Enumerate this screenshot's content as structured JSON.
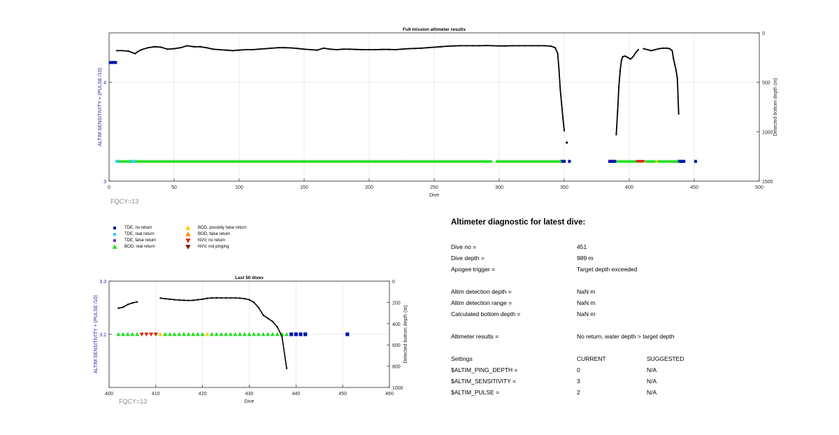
{
  "colors": {
    "tde_no_return": "#0014a8",
    "tde_real_return": "#33ccff",
    "tde_false_return": "#7b2fbe",
    "bod_real_return": "#22dd22",
    "bod_possibly_false": "#ffcc00",
    "bod_false_return": "#ff8800",
    "nvv_no_return": "#dd2200",
    "nvv_not_pinging": "#7a0a0a",
    "depth_line": "#000000",
    "left_axis": "#2222aa"
  },
  "top": {
    "fqcy": "FQCY=13"
  },
  "bottom": {
    "fqcy": "FQCY=13"
  },
  "legend": [
    {
      "key": "tde_no_return",
      "label": "TDE, no return",
      "marker": "square"
    },
    {
      "key": "tde_real_return",
      "label": "TDE, real return",
      "marker": "square"
    },
    {
      "key": "tde_false_return",
      "label": "TDE, false return",
      "marker": "square"
    },
    {
      "key": "bod_real_return",
      "label": "BOD, real return",
      "marker": "triangle-up"
    },
    {
      "key": "bod_possibly_false",
      "label": "BOD, possibly false return",
      "marker": "triangle-up"
    },
    {
      "key": "bod_false_return",
      "label": "BOD, false return",
      "marker": "triangle-up"
    },
    {
      "key": "nvv_no_return",
      "label": "NVV, no return",
      "marker": "triangle-down"
    },
    {
      "key": "nvv_not_pinging",
      "label": "NVV, not pinging",
      "marker": "triangle-down"
    }
  ],
  "diagnostic": {
    "title": "Altimeter diagnostic for latest dive:",
    "rows": [
      {
        "label": "Dive no =",
        "value": "451"
      },
      {
        "label": "Dive depth =",
        "value": "989 m"
      },
      {
        "label": "Apogee trigger =",
        "value": "Target depth exceeded"
      },
      {
        "label": "Altim detection depth =",
        "value": "NaN m"
      },
      {
        "label": "Altim detection range =",
        "value": "NaN m"
      },
      {
        "label": "Calculated bottom depth =",
        "value": "NaN m"
      },
      {
        "label": "Altimeter results =",
        "value": "No return, water depth > target depth"
      }
    ],
    "settings": {
      "header": {
        "label": "Settings",
        "current": "CURRENT",
        "suggested": "SUGGESTED"
      },
      "rows": [
        {
          "label": "$ALTIM_PING_DEPTH =",
          "current": "0",
          "suggested": "N/A"
        },
        {
          "label": "$ALTIM_SENSITIVITY =",
          "current": "3",
          "suggested": "N/A"
        },
        {
          "label": "$ALTIM_PULSE =",
          "current": "2",
          "suggested": "N/A"
        }
      ]
    }
  },
  "chart_data": [
    {
      "type": "scatter",
      "title": "Full mission altimeter results",
      "xlabel": "Dive",
      "ylabel": "ALTIM SENSITIVITY + (PULSE /10)",
      "y2label": "Detected bottom depth (m)",
      "xlim": [
        0,
        500
      ],
      "ylim": [
        3,
        4.5
      ],
      "y2lim": [
        1500,
        0
      ],
      "xticks": [
        0,
        50,
        100,
        150,
        200,
        250,
        300,
        350,
        400,
        450,
        500
      ],
      "yticks": [
        3,
        4
      ],
      "y2ticks": [
        0,
        500,
        1000,
        1500
      ],
      "grid": true,
      "series": [
        {
          "key": "tde_no_return",
          "points": [
            [
              1,
              4.2
            ],
            [
              2,
              4.2
            ],
            [
              3,
              4.2
            ],
            [
              4,
              4.2
            ],
            [
              5,
              4.2
            ],
            [
              348,
              3.2
            ],
            [
              349,
              3.2
            ],
            [
              350,
              3.2
            ],
            [
              354,
              3.2
            ],
            [
              385,
              3.2
            ],
            [
              386,
              3.2
            ],
            [
              387,
              3.2
            ],
            [
              388,
              3.2
            ],
            [
              389,
              3.2
            ],
            [
              438,
              3.2
            ],
            [
              439,
              3.2
            ],
            [
              440,
              3.2
            ],
            [
              441,
              3.2
            ],
            [
              442,
              3.2
            ],
            [
              451,
              3.2
            ]
          ]
        },
        {
          "key": "tde_real_return",
          "points": [
            [
              6,
              3.2
            ],
            [
              7,
              3.2
            ],
            [
              17,
              3.2
            ],
            [
              18,
              3.2
            ],
            [
              19,
              3.2
            ],
            [
              20,
              3.2
            ]
          ]
        },
        {
          "key": "bod_real_return",
          "ranges": [
            [
              8,
              16,
              3.2
            ],
            [
              21,
              294,
              3.2
            ],
            [
              298,
              347,
              3.2
            ],
            [
              391,
              405,
              3.2
            ],
            [
              413,
              437,
              3.2
            ]
          ]
        },
        {
          "key": "bod_possibly_false",
          "points": [
            [
              421,
              3.2
            ]
          ]
        },
        {
          "key": "nvv_no_return",
          "points": [
            [
              406,
              3.2
            ],
            [
              407,
              3.2
            ],
            [
              408,
              3.2
            ],
            [
              409,
              3.2
            ],
            [
              410,
              3.2
            ],
            [
              411,
              3.2
            ]
          ]
        },
        {
          "key": "depth",
          "name": "Detected bottom depth (m)",
          "points": [
            [
              6,
              180
            ],
            [
              10,
              180
            ],
            [
              15,
              185
            ],
            [
              18,
              200
            ],
            [
              20,
              210
            ],
            [
              22,
              190
            ],
            [
              25,
              170
            ],
            [
              30,
              150
            ],
            [
              35,
              140
            ],
            [
              40,
              145
            ],
            [
              45,
              165
            ],
            [
              50,
              160
            ],
            [
              55,
              150
            ],
            [
              60,
              130
            ],
            [
              65,
              140
            ],
            [
              70,
              140
            ],
            [
              75,
              150
            ],
            [
              80,
              165
            ],
            [
              85,
              170
            ],
            [
              90,
              175
            ],
            [
              95,
              180
            ],
            [
              100,
              175
            ],
            [
              105,
              170
            ],
            [
              110,
              170
            ],
            [
              115,
              165
            ],
            [
              120,
              160
            ],
            [
              125,
              155
            ],
            [
              130,
              150
            ],
            [
              135,
              150
            ],
            [
              140,
              152
            ],
            [
              145,
              158
            ],
            [
              150,
              165
            ],
            [
              155,
              170
            ],
            [
              160,
              175
            ],
            [
              165,
              155
            ],
            [
              170,
              165
            ],
            [
              175,
              170
            ],
            [
              180,
              165
            ],
            [
              185,
              165
            ],
            [
              190,
              168
            ],
            [
              195,
              170
            ],
            [
              200,
              170
            ],
            [
              205,
              170
            ],
            [
              210,
              168
            ],
            [
              215,
              168
            ],
            [
              220,
              170
            ],
            [
              225,
              165
            ],
            [
              230,
              160
            ],
            [
              235,
              158
            ],
            [
              240,
              155
            ],
            [
              245,
              150
            ],
            [
              250,
              145
            ],
            [
              255,
              140
            ],
            [
              260,
              135
            ],
            [
              265,
              132
            ],
            [
              270,
              130
            ],
            [
              275,
              130
            ],
            [
              280,
              130
            ],
            [
              285,
              130
            ],
            [
              290,
              128
            ],
            [
              295,
              130
            ],
            [
              300,
              132
            ],
            [
              305,
              132
            ],
            [
              310,
              130
            ],
            [
              315,
              130
            ],
            [
              320,
              130
            ],
            [
              325,
              130
            ],
            [
              330,
              130
            ],
            [
              335,
              130
            ],
            [
              340,
              135
            ],
            [
              343,
              150
            ],
            [
              345,
              210
            ],
            [
              346,
              380
            ],
            [
              347,
              580
            ],
            [
              348,
              720
            ],
            [
              349,
              860
            ],
            [
              350,
              990
            ]
          ]
        },
        {
          "key": "depth",
          "name": "Detected bottom depth (m)",
          "points": [
            [
              390,
              1030
            ],
            [
              391,
              800
            ],
            [
              392,
              550
            ],
            [
              393,
              380
            ],
            [
              394,
              280
            ],
            [
              395,
              240
            ],
            [
              397,
              235
            ],
            [
              399,
              250
            ],
            [
              401,
              265
            ],
            [
              403,
              240
            ],
            [
              405,
              200
            ],
            [
              407,
              170
            ]
          ]
        },
        {
          "key": "depth",
          "name": "Detected bottom depth (m)",
          "points": [
            [
              411,
              160
            ],
            [
              414,
              170
            ],
            [
              417,
              180
            ],
            [
              420,
              170
            ],
            [
              423,
              160
            ],
            [
              426,
              155
            ],
            [
              429,
              155
            ],
            [
              431,
              160
            ],
            [
              433,
              180
            ],
            [
              434,
              260
            ],
            [
              435,
              320
            ],
            [
              436,
              380
            ],
            [
              437,
              460
            ],
            [
              438,
              820
            ]
          ]
        },
        {
          "key": "depth_single",
          "points": [
            [
              352,
              1110
            ]
          ]
        }
      ]
    },
    {
      "type": "scatter",
      "title": "Last 50 dives",
      "xlabel": "Dive",
      "ylabel": "ALTIM SENSITIVITY + (PULSE /10)",
      "y2label": "Detected bottom depth (m)",
      "xlim": [
        400,
        460
      ],
      "ylim": [
        3.1,
        3.3
      ],
      "y2lim": [
        1000,
        0
      ],
      "xticks": [
        400,
        410,
        420,
        430,
        440,
        450,
        460
      ],
      "yticks": [
        3.2,
        3.3
      ],
      "y2ticks": [
        0,
        200,
        400,
        600,
        800,
        1000
      ],
      "grid": true,
      "series": [
        {
          "key": "bod_real_return",
          "points": [
            [
              402,
              3.2
            ],
            [
              403,
              3.2
            ],
            [
              404,
              3.2
            ],
            [
              405,
              3.2
            ],
            [
              406,
              3.2
            ],
            [
              412,
              3.2
            ],
            [
              413,
              3.2
            ],
            [
              414,
              3.2
            ],
            [
              415,
              3.2
            ],
            [
              416,
              3.2
            ],
            [
              417,
              3.2
            ],
            [
              418,
              3.2
            ],
            [
              419,
              3.2
            ],
            [
              420,
              3.2
            ],
            [
              422,
              3.2
            ],
            [
              423,
              3.2
            ],
            [
              424,
              3.2
            ],
            [
              425,
              3.2
            ],
            [
              426,
              3.2
            ],
            [
              427,
              3.2
            ],
            [
              428,
              3.2
            ],
            [
              429,
              3.2
            ],
            [
              430,
              3.2
            ],
            [
              431,
              3.2
            ],
            [
              432,
              3.2
            ],
            [
              433,
              3.2
            ],
            [
              434,
              3.2
            ],
            [
              435,
              3.2
            ],
            [
              436,
              3.2
            ],
            [
              437,
              3.2
            ],
            [
              438,
              3.2
            ]
          ]
        },
        {
          "key": "bod_possibly_false",
          "points": [
            [
              411,
              3.2
            ],
            [
              421,
              3.2
            ]
          ]
        },
        {
          "key": "nvv_no_return",
          "points": [
            [
              407,
              3.2
            ],
            [
              408,
              3.2
            ],
            [
              409,
              3.2
            ],
            [
              410,
              3.2
            ]
          ]
        },
        {
          "key": "tde_no_return",
          "points": [
            [
              439,
              3.2
            ],
            [
              440,
              3.2
            ],
            [
              441,
              3.2
            ],
            [
              442,
              3.2
            ],
            [
              451,
              3.2
            ]
          ]
        },
        {
          "key": "depth",
          "name": "Detected bottom depth (m)",
          "points": [
            [
              402,
              255
            ],
            [
              403,
              245
            ],
            [
              404,
              220
            ],
            [
              405,
              205
            ],
            [
              406,
              195
            ]
          ]
        },
        {
          "key": "depth",
          "name": "Detected bottom depth (m)",
          "points": [
            [
              411,
              160
            ],
            [
              412,
              165
            ],
            [
              413,
              170
            ],
            [
              414,
              175
            ],
            [
              415,
              178
            ],
            [
              416,
              180
            ],
            [
              417,
              182
            ],
            [
              418,
              180
            ],
            [
              419,
              175
            ],
            [
              420,
              170
            ],
            [
              421,
              162
            ],
            [
              422,
              158
            ],
            [
              423,
              157
            ],
            [
              424,
              158
            ],
            [
              425,
              158
            ],
            [
              426,
              158
            ],
            [
              427,
              158
            ],
            [
              428,
              160
            ],
            [
              429,
              165
            ],
            [
              430,
              175
            ],
            [
              431,
              200
            ],
            [
              432,
              250
            ],
            [
              433,
              320
            ],
            [
              434,
              350
            ],
            [
              435,
              380
            ],
            [
              436,
              430
            ],
            [
              437,
              520
            ],
            [
              438,
              820
            ]
          ]
        }
      ]
    }
  ]
}
